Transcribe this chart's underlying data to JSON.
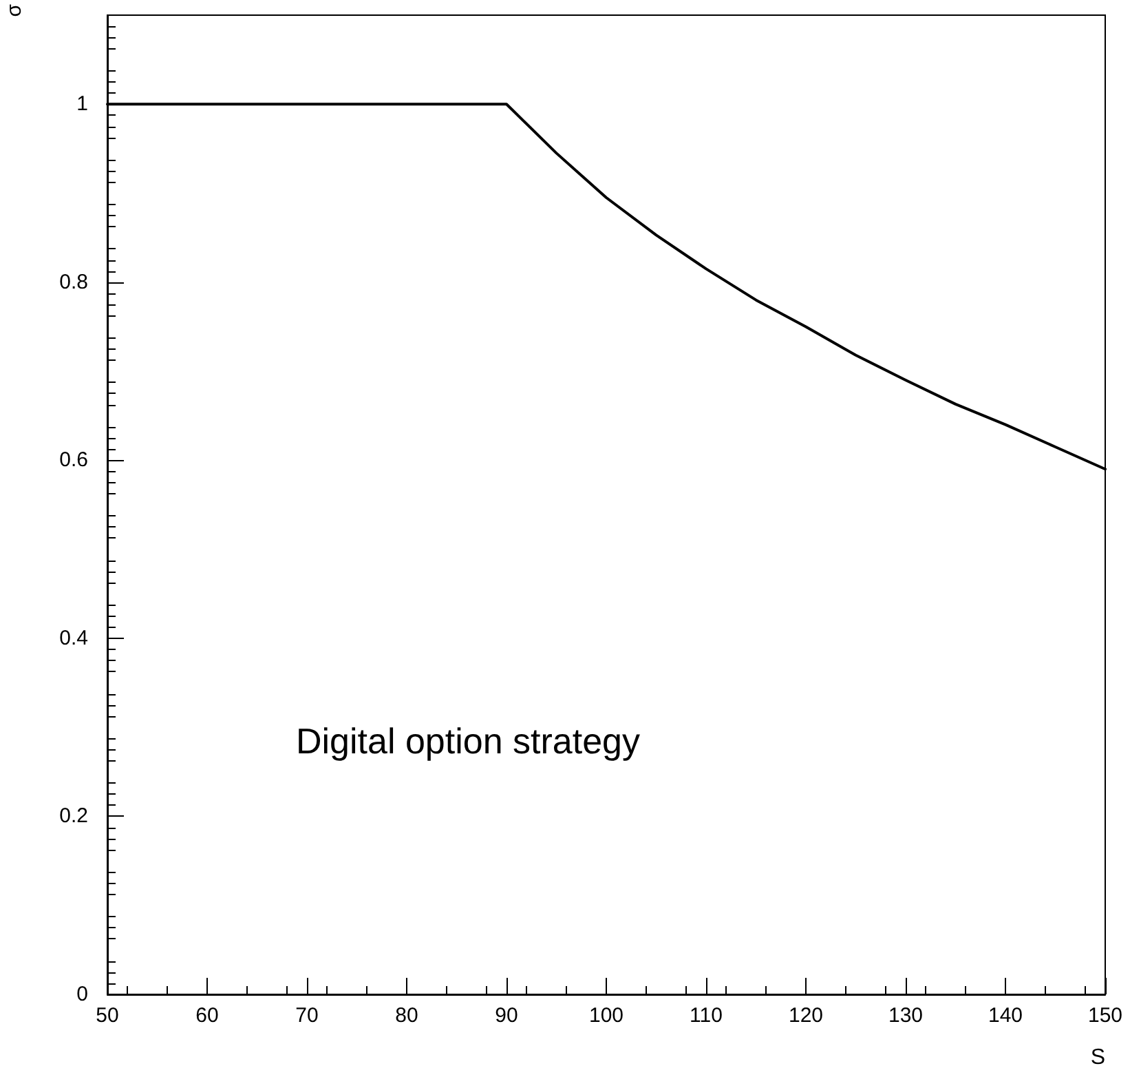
{
  "chart_data": {
    "type": "line",
    "xlabel": "S",
    "ylabel": "σ",
    "annotations": [
      "Digital option strategy"
    ],
    "x": [
      50,
      60,
      70,
      80,
      90,
      95,
      100,
      105,
      110,
      115,
      120,
      125,
      130,
      135,
      140,
      145,
      150
    ],
    "series": [
      {
        "color": "#000000",
        "values": [
          1,
          1,
          1,
          1,
          1,
          0.945,
          0.895,
          0.853,
          0.815,
          0.78,
          0.75,
          0.718,
          0.69,
          0.663,
          0.64,
          0.615,
          0.59
        ]
      }
    ],
    "xlim": [
      50,
      150
    ],
    "xticks": [
      50,
      60,
      70,
      80,
      90,
      100,
      110,
      120,
      130,
      140,
      150
    ],
    "ylim": [
      0,
      1.1
    ],
    "yticks": [
      0,
      0.2,
      0.4,
      0.6,
      0.8,
      1
    ],
    "grid": false,
    "marker": "none",
    "line_style": "solid"
  }
}
